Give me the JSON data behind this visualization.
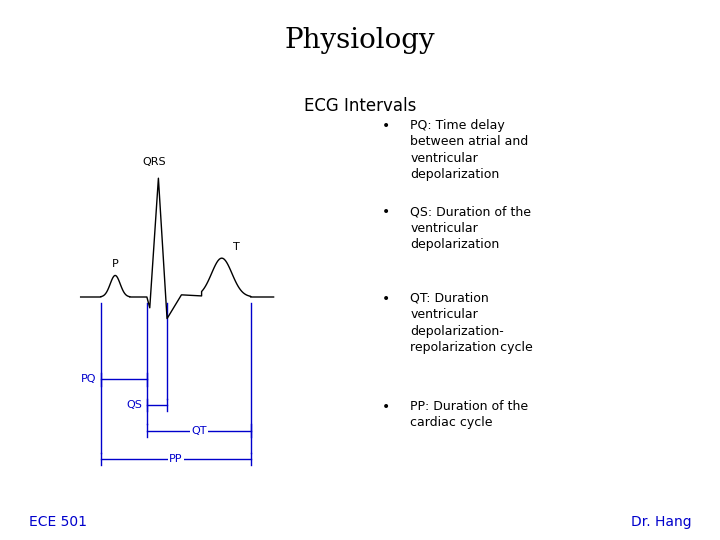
{
  "title": "Physiology",
  "subtitle": "ECG Intervals",
  "footer_left": "ECE 501",
  "footer_right": "Dr. Hang",
  "bg_color": "#ffffff",
  "ecg_color": "#000000",
  "annotation_color": "#0000cc",
  "title_fontsize": 20,
  "subtitle_fontsize": 12,
  "footer_fontsize": 10,
  "label_fontsize": 8,
  "bullet_fontsize": 9,
  "bullets": [
    "PQ: Time delay\nbetween atrial and\nventricular\ndepolarization",
    "QS: Duration of the\nventricular\ndepolarization",
    "QT: Duration\nventricular\ndepolarization-\nrepolarization cycle",
    "PP: Duration of the\ncardiac cycle"
  ]
}
